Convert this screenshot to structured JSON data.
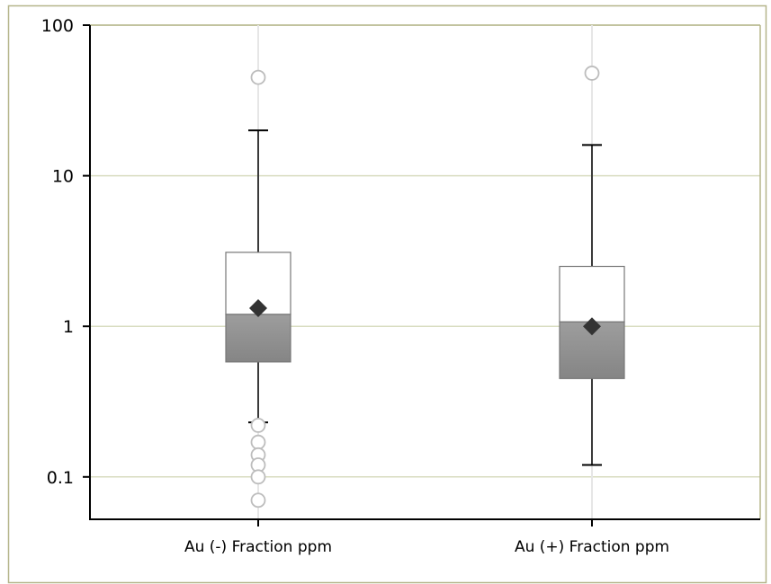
{
  "chart_data": {
    "type": "box",
    "title": "",
    "xlabel": "",
    "ylabel": "",
    "yscale": "log",
    "ylim": [
      0.05,
      100
    ],
    "yticks": [
      {
        "value": 100,
        "label": "100"
      },
      {
        "value": 10,
        "label": "10"
      },
      {
        "value": 1,
        "label": "1"
      },
      {
        "value": 0.1,
        "label": "0.1"
      }
    ],
    "grid": true,
    "legend": "none",
    "categories": [
      "Au (-) Fraction ppm",
      "Au (+) Fraction ppm"
    ],
    "series": [
      {
        "category": "Au (-) Fraction ppm",
        "whisker_low": 0.23,
        "q1": 0.58,
        "median": 1.2,
        "q3": 3.1,
        "whisker_high": 20,
        "mean": 1.32,
        "outliers": [
          45,
          0.22,
          0.17,
          0.14,
          0.12,
          0.1,
          0.07
        ]
      },
      {
        "category": "Au (+) Fraction ppm",
        "whisker_low": 0.12,
        "q1": 0.45,
        "median": 1.07,
        "q3": 2.5,
        "whisker_high": 16,
        "mean": 1.0,
        "outliers": [
          48
        ]
      }
    ],
    "colors": {
      "frame_border": "#b5b58a",
      "gridline": "#d8dcc0",
      "whisker_band": "#e6e6e6",
      "axis": "#000000",
      "upper_box_fill": "#ffffff",
      "upper_box_stroke": "#777777",
      "lower_box_fill_top": "#9d9d9d",
      "lower_box_fill_bottom": "#858585",
      "mean_marker": "#333333",
      "outlier_stroke": "#bdbdbd"
    }
  }
}
